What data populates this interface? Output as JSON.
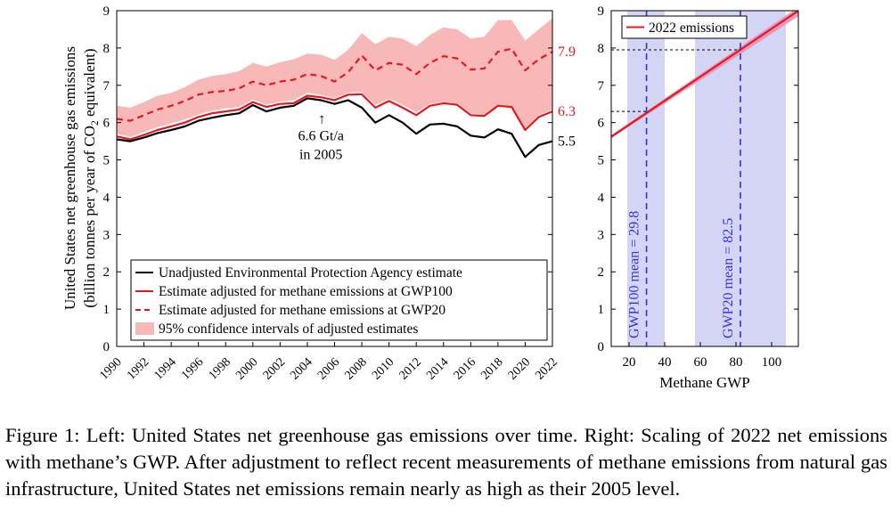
{
  "chart_data": [
    {
      "type": "line",
      "panel": "left",
      "ylabel": "United States net greenhouse gas emissions",
      "ylabel2_prefix": "(billion tonnes per year of CO",
      "ylabel2_sub": "2",
      "ylabel2_suffix": " equivalent)",
      "xlabel": "",
      "xlim": [
        1990,
        2022
      ],
      "ylim": [
        0,
        9
      ],
      "yticks": [
        0,
        1,
        2,
        3,
        4,
        5,
        6,
        7,
        8,
        9
      ],
      "xticks": [
        "1990",
        "1992",
        "1994",
        "1996",
        "1998",
        "2000",
        "2002",
        "2004",
        "2006",
        "2008",
        "2010",
        "2012",
        "2014",
        "2016",
        "2018",
        "2020",
        "2022"
      ],
      "x": [
        1990,
        1991,
        1992,
        1993,
        1994,
        1995,
        1996,
        1997,
        1998,
        1999,
        2000,
        2001,
        2002,
        2003,
        2004,
        2005,
        2006,
        2007,
        2008,
        2009,
        2010,
        2011,
        2012,
        2013,
        2014,
        2015,
        2016,
        2017,
        2018,
        2019,
        2020,
        2021,
        2022
      ],
      "series": [
        {
          "name": "Unadjusted Environmental Protection Agency estimate",
          "color": "#000000",
          "dash": "solid",
          "values": [
            5.55,
            5.5,
            5.6,
            5.72,
            5.8,
            5.9,
            6.05,
            6.13,
            6.2,
            6.25,
            6.47,
            6.3,
            6.4,
            6.45,
            6.65,
            6.6,
            6.5,
            6.6,
            6.4,
            6.0,
            6.2,
            6.0,
            5.7,
            5.95,
            5.97,
            5.9,
            5.65,
            5.6,
            5.82,
            5.7,
            5.08,
            5.4,
            5.5
          ]
        },
        {
          "name": "Estimate adjusted for methane emissions at GWP100",
          "color": "#e8171f",
          "dash": "solid",
          "values": [
            5.63,
            5.55,
            5.67,
            5.8,
            5.9,
            6.0,
            6.15,
            6.25,
            6.3,
            6.35,
            6.55,
            6.42,
            6.5,
            6.52,
            6.72,
            6.68,
            6.6,
            6.75,
            6.76,
            6.4,
            6.58,
            6.4,
            6.2,
            6.45,
            6.52,
            6.48,
            6.2,
            6.18,
            6.45,
            6.42,
            5.8,
            6.15,
            6.3
          ]
        },
        {
          "name": "Estimate adjusted for methane emissions at GWP20",
          "color": "#e8171f",
          "dash": "dashed",
          "values": [
            6.1,
            6.05,
            6.2,
            6.35,
            6.45,
            6.58,
            6.75,
            6.82,
            6.85,
            6.92,
            7.1,
            7.0,
            7.1,
            7.15,
            7.3,
            7.25,
            7.1,
            7.35,
            7.8,
            7.4,
            7.6,
            7.55,
            7.3,
            7.6,
            7.78,
            7.72,
            7.42,
            7.45,
            7.9,
            7.98,
            7.4,
            7.7,
            7.9
          ]
        }
      ],
      "ci": {
        "name": "95% confidence intervals of adjusted estimates",
        "color": "#f9b8b8",
        "lower": [
          5.7,
          5.62,
          5.75,
          5.88,
          5.98,
          6.08,
          6.22,
          6.32,
          6.38,
          6.42,
          6.62,
          6.48,
          6.56,
          6.6,
          6.8,
          6.74,
          6.66,
          6.8,
          6.82,
          6.48,
          6.64,
          6.48,
          6.28,
          6.5,
          6.56,
          6.52,
          6.25,
          6.22,
          6.48,
          6.44,
          5.85,
          6.2,
          6.35
        ],
        "upper": [
          6.45,
          6.4,
          6.55,
          6.72,
          6.8,
          6.95,
          7.15,
          7.25,
          7.3,
          7.38,
          7.6,
          7.5,
          7.62,
          7.7,
          7.85,
          7.82,
          7.68,
          7.95,
          8.4,
          8.1,
          8.3,
          8.25,
          8.05,
          8.35,
          8.55,
          8.5,
          8.25,
          8.3,
          8.75,
          8.75,
          8.2,
          8.5,
          8.8
        ]
      },
      "end_labels": [
        "7.9",
        "6.3",
        "5.5"
      ],
      "annotation": {
        "line1": "6.6 Gt/a",
        "line2": "in 2005",
        "arrow": "↑",
        "x": 2005,
        "y": 6.6
      },
      "legend_position": "bottom-left"
    },
    {
      "type": "line",
      "panel": "right",
      "title": "",
      "xlabel": "Methane GWP",
      "ylabel": "",
      "xlim": [
        10,
        115
      ],
      "ylim": [
        0,
        9
      ],
      "xticks": [
        20,
        40,
        60,
        80,
        100
      ],
      "yticks": [
        0,
        1,
        2,
        3,
        4,
        5,
        6,
        7,
        8,
        9
      ],
      "line": {
        "name": "2022 emissions",
        "color": "#e8171f",
        "x": [
          10,
          115
        ],
        "y": [
          5.62,
          9.0
        ]
      },
      "band": {
        "color": "#e58cb0",
        "x": [
          10,
          115
        ],
        "lower": [
          5.58,
          8.85
        ],
        "upper": [
          5.66,
          9.1
        ]
      },
      "shaded_ranges": [
        {
          "from": 19,
          "to": 40,
          "color": "#d4d4f5"
        },
        {
          "from": 57,
          "to": 108,
          "color": "#d4d4f5"
        }
      ],
      "markers": [
        {
          "label": "GWP100 mean = 29.8",
          "x": 29.8,
          "y": 6.3,
          "color": "#3333dd"
        },
        {
          "label": "GWP20 mean = 82.5",
          "x": 82.5,
          "y": 7.95,
          "color": "#3333dd"
        }
      ],
      "legend_position": "top-left"
    }
  ],
  "caption": "Figure 1: Left: United States net greenhouse gas emissions over time. Right: Scaling of 2022 net emissions with methane’s GWP. After adjustment to reflect recent measurements of methane emissions from natural gas infrastructure, United States net emissions remain nearly as high as their 2005 level."
}
